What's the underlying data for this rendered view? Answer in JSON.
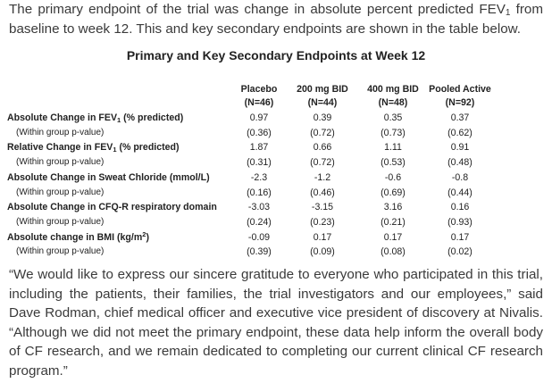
{
  "intro": {
    "before": "The primary endpoint of the trial was change in absolute percent predicted FEV",
    "sub": "1",
    "after": " from baseline to week 12. This and key secondary endpoints are shown in the table below."
  },
  "table": {
    "title": "Primary and Key Secondary Endpoints at Week 12",
    "columns": [
      {
        "name": "Placebo",
        "n": "(N=46)"
      },
      {
        "name": "200 mg BID",
        "n": "(N=44)"
      },
      {
        "name": "400 mg BID",
        "n": "(N=48)"
      },
      {
        "name": "Pooled Active",
        "n": "(N=92)"
      }
    ],
    "rows": [
      {
        "label_before": "Absolute Change in FEV",
        "label_sub": "1",
        "label_after": " (% predicted)",
        "values": [
          "0.97",
          "0.39",
          "0.35",
          "0.37"
        ],
        "pvalue_label": "(Within group p-value)",
        "pvalues": [
          "(0.36)",
          "(0.72)",
          "(0.73)",
          "(0.62)"
        ]
      },
      {
        "label_before": "Relative Change in FEV",
        "label_sub": "1",
        "label_after": " (% predicted)",
        "values": [
          "1.87",
          "0.66",
          "1.11",
          "0.91"
        ],
        "pvalue_label": "(Within group p-value)",
        "pvalues": [
          "(0.31)",
          "(0.72)",
          "(0.53)",
          "(0.48)"
        ]
      },
      {
        "label": "Absolute Change in Sweat Chloride (mmol/L)",
        "values": [
          "-2.3",
          "-1.2",
          "-0.6",
          "-0.8"
        ],
        "pvalue_label": "(Within group p-value)",
        "pvalues": [
          "(0.16)",
          "(0.46)",
          "(0.69)",
          "(0.44)"
        ]
      },
      {
        "label": "Absolute Change in CFQ-R respiratory domain",
        "values": [
          "-3.03",
          "-3.15",
          "3.16",
          "0.16"
        ],
        "pvalue_label": "(Within group p-value)",
        "pvalues": [
          "(0.24)",
          "(0.23)",
          "(0.21)",
          "(0.93)"
        ]
      },
      {
        "label_before": "Absolute change in BMI (kg/m",
        "label_sup": "2",
        "label_after": ")",
        "values": [
          "-0.09",
          "0.17",
          "0.17",
          "0.17"
        ],
        "pvalue_label": "(Within group p-value)",
        "pvalues": [
          "(0.39)",
          "(0.09)",
          "(0.08)",
          "(0.02)"
        ]
      }
    ]
  },
  "quote": "“We would like to express our sincere gratitude to everyone who participated in this trial, including the patients, their families, the trial investigators and our employees,” said Dave Rodman, chief medical officer and executive vice president of discovery at Nivalis. “Although we did not meet the primary endpoint, these data help inform the overall body of CF research, and we remain dedicated to completing our current clinical CF research program.”"
}
